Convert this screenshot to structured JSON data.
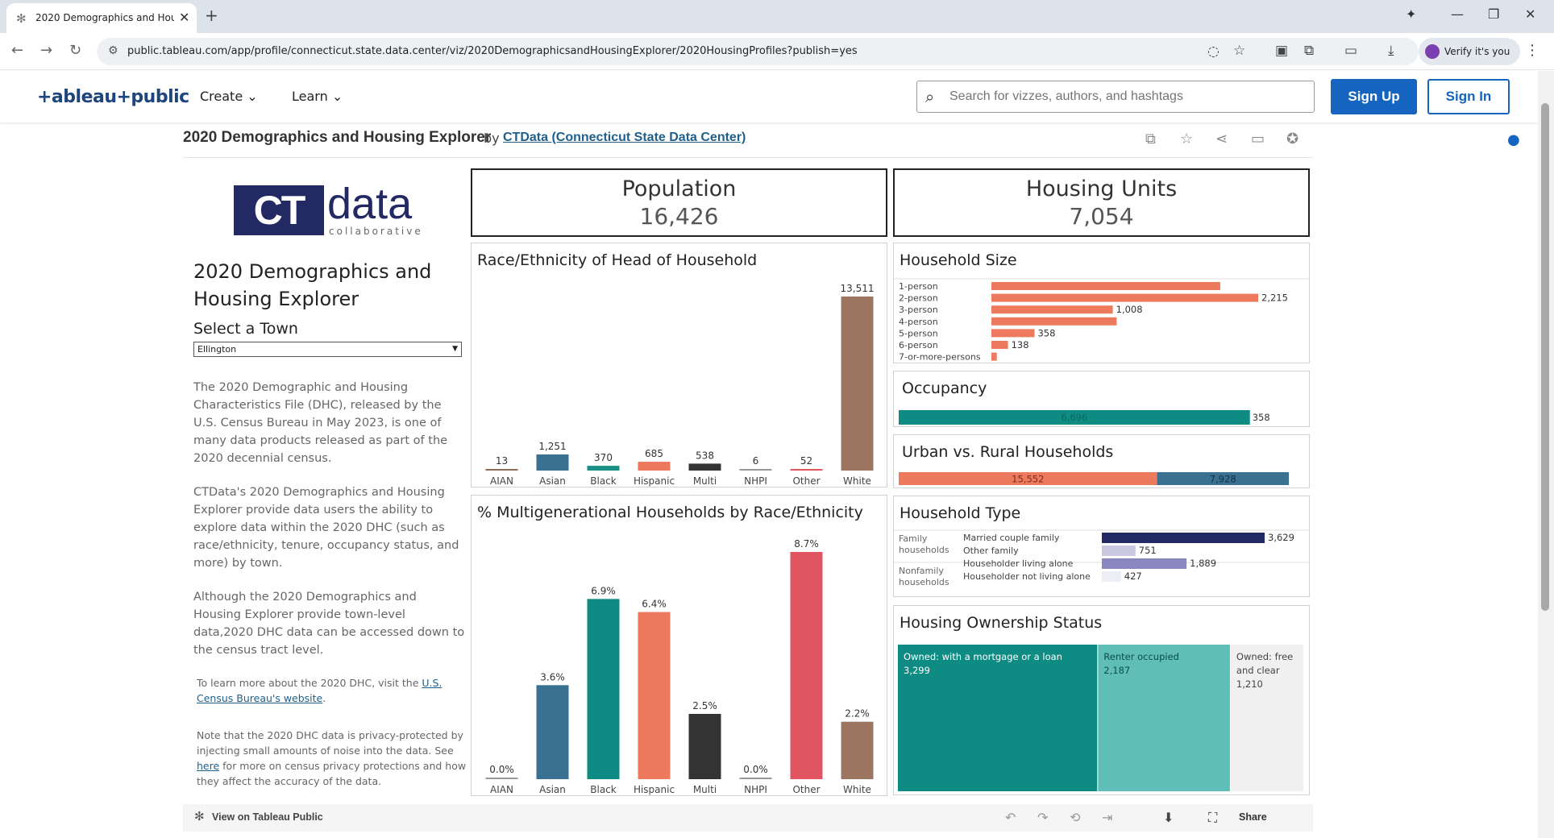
{
  "browser": {
    "tab_title": "2020 Demographics and Housi",
    "url": "public.tableau.com/app/profile/connecticut.state.data.center/viz/2020DemographicsandHousingExplorer/2020HousingProfiles?publish=yes",
    "verify_label": "Verify it's you"
  },
  "header": {
    "logo": "+ableau+public",
    "nav": [
      "Create",
      "Learn"
    ],
    "search_placeholder": "Search for vizzes, authors, and hashtags",
    "signup": "Sign Up",
    "signin": "Sign In"
  },
  "viz": {
    "title": "2020 Demographics and Housing Explorer",
    "by": "by",
    "author": "CTData (Connecticut State Data Center)"
  },
  "left": {
    "logo_ct": "CT",
    "logo_data": "data",
    "logo_sub": "collaborative",
    "dash_title": "2020 Demographics and Housing Explorer",
    "select_label": "Select a Town",
    "town": "Ellington",
    "p1": "The 2020 Demographic and Housing Characteristics File (DHC), released by the U.S. Census Bureau in May 2023, is one of many data products released as part of the 2020 decennial census.",
    "p2": "CTData's 2020 Demographics and Housing Explorer provide data users the ability to explore data within the 2020 DHC (such as race/ethnicity, tenure, occupancy status, and more) by town.",
    "p3": "Although the 2020 Demographics and Housing Explorer provide town-level data,2020 DHC data can be accessed down to the census tract level.",
    "note1_pre": "To learn more about the 2020 DHC, visit the ",
    "note1_link": "U.S. Census Bureau's website",
    "note1_post": ".",
    "note2_pre": "Note that the 2020 DHC data is privacy-protected by injecting small amounts of noise into the data. See ",
    "note2_link": "here",
    "note2_post": " for more on census privacy protections and how they affect the accuracy of the data."
  },
  "kpi": {
    "population_label": "Population",
    "population_value": "16,426",
    "housing_label": "Housing Units",
    "housing_value": "7,054"
  },
  "cards": {
    "race_title": "Race/Ethnicity of Head of Household",
    "multigen_title": "% Multigenerational Households by Race/Ethnicity",
    "hhsize_title": "Household Size",
    "occupancy_title": "Occupancy",
    "urban_title": "Urban vs. Rural Households",
    "hhtype_title": "Household Type",
    "ownership_title": "Housing Ownership Status"
  },
  "chart_data": [
    {
      "type": "bar",
      "title": "Race/Ethnicity of Head of Household",
      "categories": [
        "AIAN",
        "Asian",
        "Black",
        "Hispanic",
        "Multi",
        "NHPI",
        "Other",
        "White"
      ],
      "values": [
        13,
        1251,
        370,
        685,
        538,
        6,
        52,
        13511
      ],
      "labels": [
        "13",
        "1,251",
        "370",
        "685",
        "538",
        "6",
        "52",
        "13,511"
      ],
      "colors": [
        "#8b6d5a",
        "#3b7190",
        "#1a8f86",
        "#ee7a5e",
        "#333333",
        "#999999",
        "#e05560",
        "#9c7661"
      ]
    },
    {
      "type": "bar",
      "title": "% Multigenerational Households by Race/Ethnicity",
      "categories": [
        "AIAN",
        "Asian",
        "Black",
        "Hispanic",
        "Multi",
        "NHPI",
        "Other",
        "White"
      ],
      "values": [
        0.0,
        3.6,
        6.9,
        6.4,
        2.5,
        0.0,
        8.7,
        2.2
      ],
      "labels": [
        "0.0%",
        "3.6%",
        "6.9%",
        "6.4%",
        "2.5%",
        "0.0%",
        "8.7%",
        "2.2%"
      ],
      "colors": [
        "#999999",
        "#3b7190",
        "#0e8c83",
        "#ee7a5e",
        "#333333",
        "#999999",
        "#e05560",
        "#9c7661"
      ]
    },
    {
      "type": "bar",
      "title": "Household Size",
      "categories": [
        "1-person",
        "2-person",
        "3-person",
        "4-person",
        "5-person",
        "6-person",
        "7-or-more-persons"
      ],
      "values": [
        1900,
        2215,
        1008,
        1040,
        358,
        138,
        45
      ],
      "labels": [
        "",
        "2,215",
        "1,008",
        "",
        "358",
        "138",
        ""
      ],
      "color": "#ee7a5e"
    },
    {
      "type": "bar",
      "title": "Occupancy",
      "values": [
        6696,
        358
      ],
      "labels": [
        "6,696",
        "358"
      ],
      "colors": [
        "#0e8c83",
        "#cccccc"
      ]
    },
    {
      "type": "bar",
      "title": "Urban vs. Rural Households",
      "values": [
        15552,
        7928
      ],
      "labels": [
        "15,552",
        "7,928"
      ],
      "colors": [
        "#ee7a5e",
        "#3b7190"
      ]
    },
    {
      "type": "bar",
      "title": "Household Type",
      "groups": [
        "Family households",
        "Nonfamily households"
      ],
      "categories": [
        "Married couple family",
        "Other family",
        "Householder living alone",
        "Householder not living alone"
      ],
      "values": [
        3629,
        751,
        1889,
        427
      ],
      "labels": [
        "3,629",
        "751",
        "1,889",
        "427"
      ],
      "colors": [
        "#232a63",
        "#c9c8e0",
        "#8a87c0",
        "#ededf5"
      ]
    },
    {
      "type": "treemap",
      "title": "Housing Ownership Status",
      "categories": [
        "Owned: with a mortgage or a loan",
        "Renter occupied",
        "Owned: free and clear"
      ],
      "values": [
        3299,
        2187,
        1210
      ],
      "labels": [
        "3,299",
        "2,187",
        "1,210"
      ],
      "colors": [
        "#0e8c83",
        "#5fbfb8",
        "#f0f0f0"
      ]
    }
  ],
  "bottom": {
    "view_on": "View on Tableau Public",
    "share": "Share"
  }
}
